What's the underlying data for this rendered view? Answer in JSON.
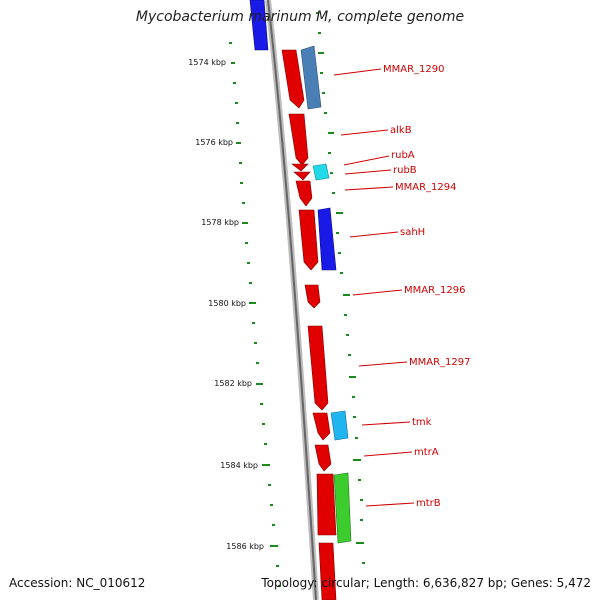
{
  "title": "Mycobacterium marinum M, complete genome",
  "footer": {
    "accession": "Accession: NC_010612",
    "topology": "Topology: circular; Length: 6,636,827 bp; Genes: 5,472"
  },
  "colors": {
    "forward_cds": "#e00000",
    "gene_label": "#d00000",
    "backbone": "#7a7a7a",
    "tick": "#1a8a1a"
  },
  "ticks": [
    "1574 kbp",
    "1576 kbp",
    "1578 kbp",
    "1580 kbp",
    "1582 kbp",
    "1584 kbp",
    "1586 kbp"
  ],
  "genes": [
    "MMAR_1290",
    "alkB",
    "rubA",
    "rubB",
    "MMAR_1294",
    "sahH",
    "MMAR_1296",
    "MMAR_1297",
    "tmk",
    "mtrA",
    "mtrB"
  ]
}
